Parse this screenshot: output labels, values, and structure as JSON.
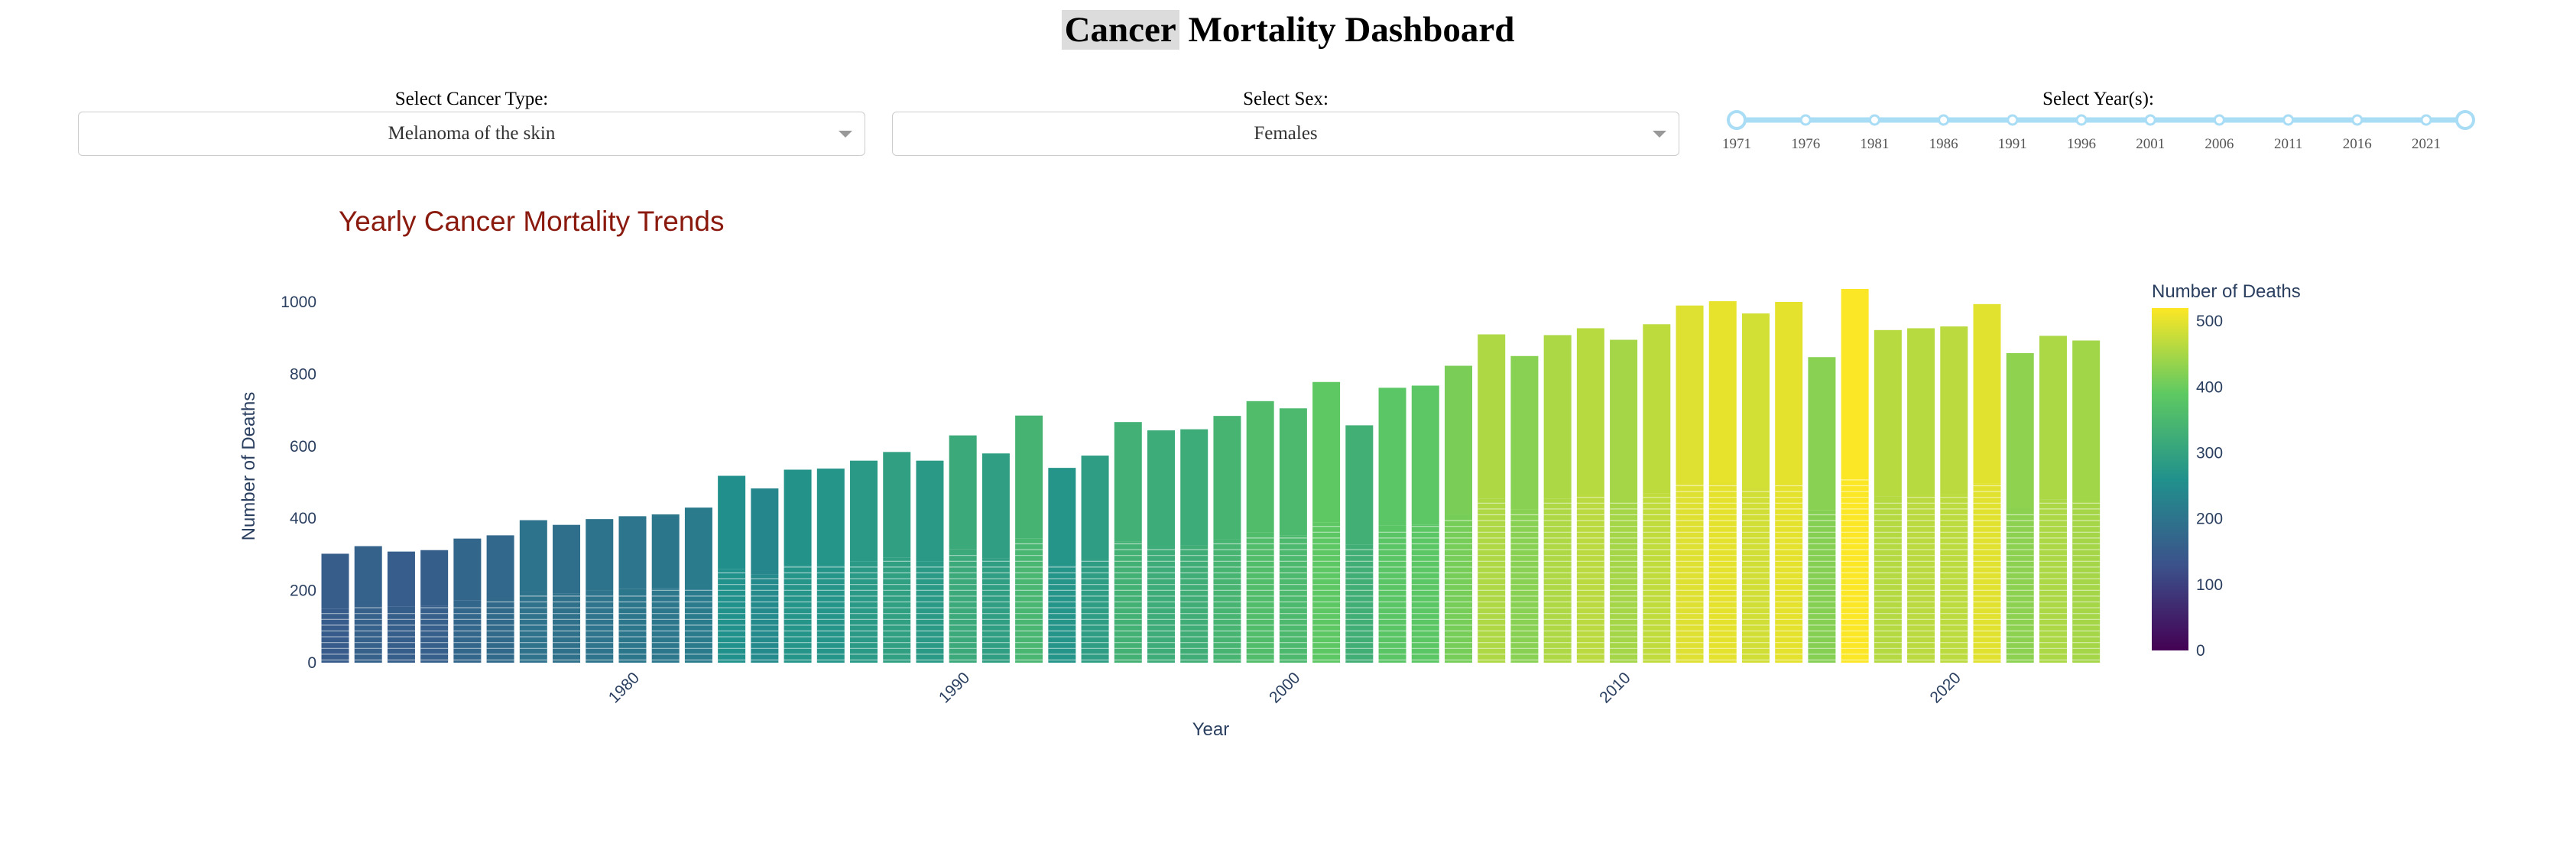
{
  "page": {
    "title_highlight": "Cancer",
    "title_rest": " Mortality Dashboard"
  },
  "controls": {
    "cancer_type": {
      "label": "Select Cancer Type:",
      "value": "Melanoma of the skin"
    },
    "sex": {
      "label": "Select Sex:",
      "value": "Females"
    },
    "years": {
      "label": "Select Year(s):",
      "ticks": [
        "1971",
        "1976",
        "1981",
        "1986",
        "1991",
        "1996",
        "2001",
        "2006",
        "2011",
        "2016",
        "2021"
      ],
      "range": [
        1971,
        2024
      ]
    }
  },
  "chart_data": {
    "type": "bar",
    "title": "Yearly Cancer Mortality Trends",
    "xlabel": "Year",
    "ylabel": "Number of Deaths",
    "x_tick_labels": [
      "1980",
      "1990",
      "2000",
      "2010",
      "2020"
    ],
    "y_tick_labels": [
      "0",
      "200",
      "400",
      "600",
      "800",
      "1000"
    ],
    "ylim": [
      0,
      1050
    ],
    "colorbar": {
      "title": "Number of Deaths",
      "ticks": [
        "0",
        "100",
        "200",
        "300",
        "400",
        "500"
      ],
      "range": [
        0,
        520
      ],
      "colorscale": "Viridis"
    },
    "years": [
      1971,
      1972,
      1973,
      1974,
      1975,
      1976,
      1977,
      1978,
      1979,
      1980,
      1981,
      1982,
      1983,
      1984,
      1985,
      1986,
      1987,
      1988,
      1989,
      1990,
      1991,
      1992,
      1993,
      1994,
      1995,
      1996,
      1997,
      1998,
      1999,
      2000,
      2001,
      2002,
      2003,
      2004,
      2005,
      2006,
      2007,
      2008,
      2009,
      2010,
      2011,
      2012,
      2013,
      2014,
      2015,
      2016,
      2017,
      2018,
      2019,
      2020,
      2021,
      2022,
      2023,
      2024
    ],
    "series": [
      {
        "values": [
          150,
          160,
          155,
          157,
          172,
          178,
          197,
          192,
          200,
          204,
          206,
          215,
          260,
          245,
          270,
          270,
          280,
          292,
          280,
          315,
          290,
          345,
          270,
          287,
          335,
          322,
          325,
          342,
          362,
          352,
          388,
          328,
          380,
          383,
          410,
          455,
          425,
          455,
          465,
          447,
          470,
          495,
          500,
          483,
          500,
          422,
          518,
          460,
          465,
          467,
          497,
          428,
          453,
          448
        ]
      },
      {
        "values": [
          152,
          163,
          153,
          155,
          172,
          175,
          198,
          190,
          198,
          202,
          205,
          215,
          258,
          238,
          265,
          268,
          280,
          292,
          280,
          315,
          290,
          340,
          270,
          287,
          332,
          322,
          322,
          342,
          363,
          353,
          390,
          330,
          382,
          385,
          413,
          455,
          425,
          453,
          462,
          448,
          468,
          495,
          502,
          485,
          500,
          425,
          518,
          462,
          462,
          465,
          497,
          430,
          453,
          445
        ]
      }
    ]
  }
}
